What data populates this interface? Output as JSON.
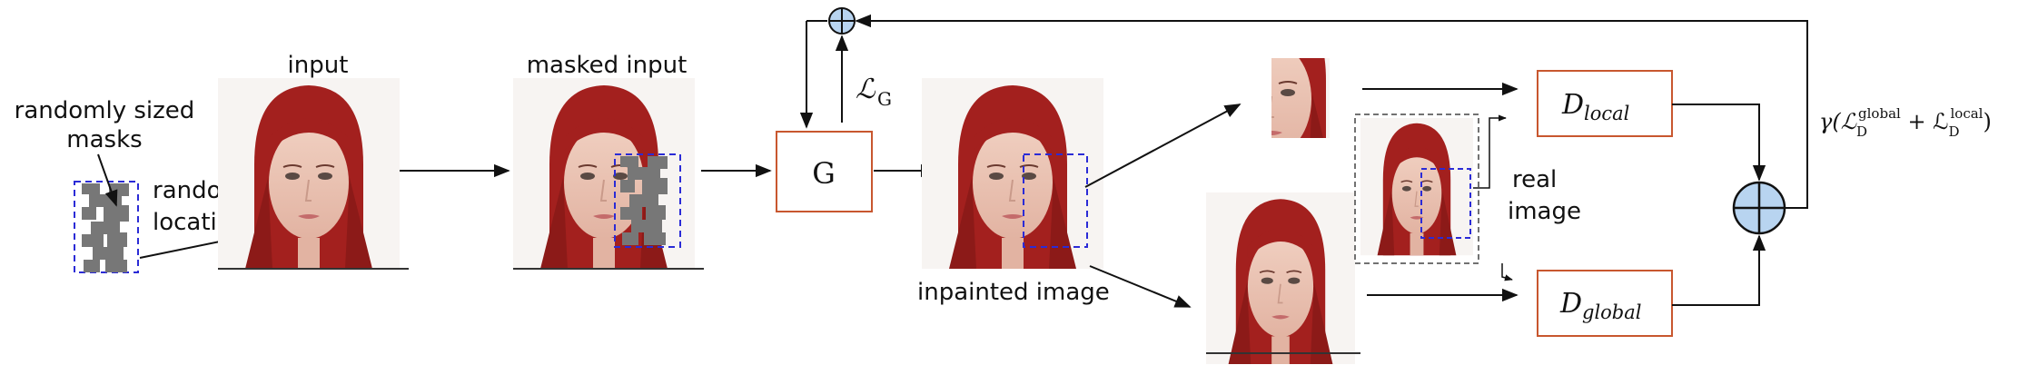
{
  "labels": {
    "input": "input",
    "masked_input": "masked input",
    "randomly_sized_masks_1": "randomly sized",
    "randomly_sized_masks_2": "masks",
    "random_location_1": "random",
    "random_location_2": "location",
    "inpainted_image": "inpainted image",
    "real_image_1": "real",
    "real_image_2": "image"
  },
  "blocks": {
    "generator": "G",
    "d_local_main": "D",
    "d_local_sub": "local",
    "d_global_main": "D",
    "d_global_sub": "global"
  },
  "math": {
    "loss_g_main": "ℒ",
    "loss_g_sub": "G",
    "gamma_prefix": "γ(ℒ",
    "gamma_sub1": "D",
    "gamma_sup1": "global",
    "gamma_plus": " + ℒ",
    "gamma_sub2": "D",
    "gamma_sup2": "local",
    "gamma_close": ")"
  },
  "icons": {
    "sum_node": "circle-plus-icon",
    "photo": "portrait-photo"
  },
  "colors": {
    "block_border": "#c8572f",
    "mask_border": "#2b2bd6",
    "sum_fill": "#b8d4f0",
    "mask_gray": "#777777",
    "hair": "#a3201e"
  }
}
